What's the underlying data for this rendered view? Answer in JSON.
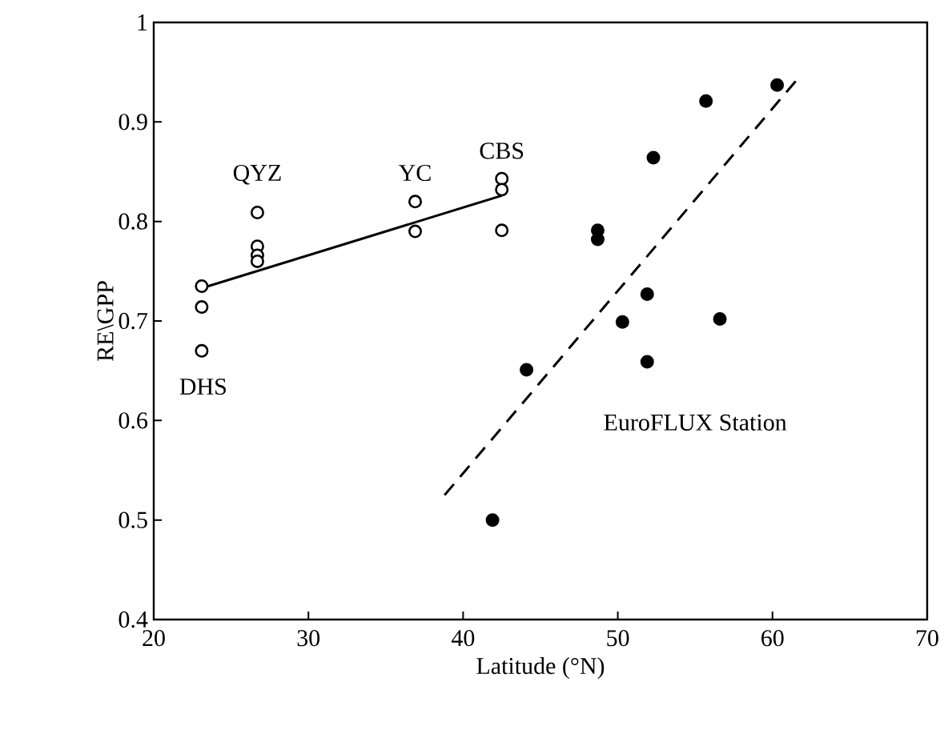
{
  "chart_data": {
    "type": "scatter",
    "xlabel": "Latitude (°N)",
    "ylabel": "RE\\GPP",
    "xlim": [
      20,
      70
    ],
    "ylim": [
      0.4,
      1
    ],
    "xticks": [
      20,
      30,
      40,
      50,
      60,
      70
    ],
    "yticks": [
      0.4,
      0.5,
      0.6,
      0.7,
      0.8,
      0.9,
      1
    ],
    "marker": "circle",
    "grid": false,
    "series": [
      {
        "color": "#000000",
        "x": [
          23.1,
          23.1,
          23.1,
          26.7,
          26.7,
          26.7,
          26.7,
          36.9,
          36.9,
          42.5,
          42.5,
          42.5
        ],
        "values": [
          0.735,
          0.714,
          0.67,
          0.809,
          0.775,
          0.766,
          0.76,
          0.82,
          0.79,
          0.843,
          0.832,
          0.791
        ]
      },
      {
        "color": "#000000",
        "x": [
          60.3,
          55.7,
          52.3,
          48.7,
          48.7,
          51.9,
          50.3,
          56.6,
          51.9,
          44.1,
          41.9
        ],
        "values": [
          0.937,
          0.921,
          0.864,
          0.791,
          0.782,
          0.727,
          0.699,
          0.702,
          0.659,
          0.651,
          0.5
        ]
      },
      {
        "type": "line",
        "color": "#000000",
        "line_style": "solid",
        "marker": "none",
        "x": [
          23.1,
          42.5
        ],
        "values": [
          0.733,
          0.826
        ]
      },
      {
        "type": "line",
        "color": "#000000",
        "line_style": "dashed",
        "marker": "none",
        "x": [
          38.8,
          61.5
        ],
        "values": [
          0.525,
          0.941
        ]
      }
    ],
    "annotations": [
      "QYZ",
      "YC",
      "CBS",
      "DHS",
      "EuroFLUX Station"
    ]
  }
}
